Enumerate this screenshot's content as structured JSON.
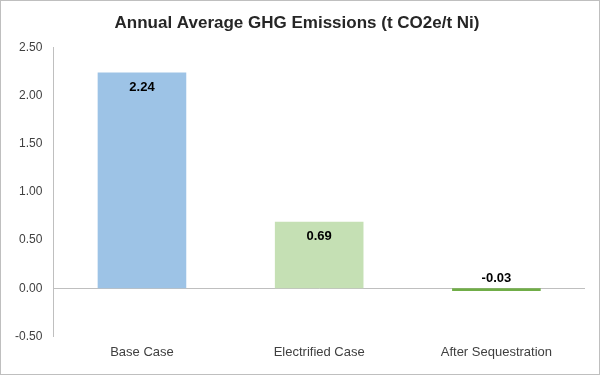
{
  "chart_data": {
    "type": "bar",
    "title": "Annual Average GHG Emissions (t CO2e/t Ni)",
    "categories": [
      "Base Case",
      "Electrified Case",
      "After Sequestration"
    ],
    "values": [
      2.24,
      0.69,
      -0.03
    ],
    "colors": [
      "#9dc3e6",
      "#c5e0b4",
      "#70ad47"
    ],
    "ylim": [
      -0.5,
      2.5
    ],
    "yticks": [
      {
        "value": -0.5,
        "label": "-0.50"
      },
      {
        "value": 0,
        "label": "0.00"
      },
      {
        "value": 0.5,
        "label": "0.50"
      },
      {
        "value": 1,
        "label": "1.00"
      },
      {
        "value": 1.5,
        "label": "1.50"
      },
      {
        "value": 2,
        "label": "2.00"
      },
      {
        "value": 2.5,
        "label": "2.50"
      }
    ],
    "grid": false,
    "data_labels": true
  }
}
